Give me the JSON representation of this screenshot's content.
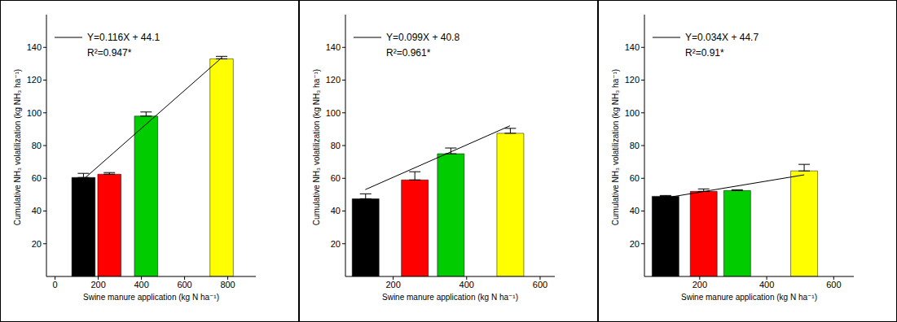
{
  "chart_data": [
    {
      "type": "bar",
      "x_label": "Swine manure application (kg N ha⁻¹)",
      "y_label": "Cumulative NH₃ volatilization (kg NH₃ ha⁻¹)",
      "x": [
        130,
        250,
        420,
        770
      ],
      "values": [
        60.5,
        62.5,
        98,
        133
      ],
      "errors": [
        2.5,
        1,
        2.5,
        1.5
      ],
      "colors": [
        "#000000",
        "#ff0000",
        "#00cc00",
        "#ffff00"
      ],
      "xlim": [
        -40,
        930
      ],
      "xticks": [
        0,
        200,
        400,
        600,
        800
      ],
      "ylim": [
        0,
        160
      ],
      "yticks": [
        20,
        40,
        60,
        80,
        100,
        120,
        140
      ],
      "regression": {
        "equation": "Y=0.116X + 44.1",
        "r_squared_label": "R²=0.947*",
        "slope": 0.116,
        "intercept": 44.1,
        "r_squared": 0.947
      }
    },
    {
      "type": "bar",
      "x_label": "Swine manure application (kg N ha⁻¹)",
      "y_label": "Cumulative NH₃ volatilization (kg NH₃ ha⁻¹)",
      "x": [
        124,
        258,
        356,
        518
      ],
      "values": [
        47.5,
        59,
        75,
        87.5
      ],
      "errors": [
        3,
        5,
        3.5,
        3
      ],
      "colors": [
        "#000000",
        "#ff0000",
        "#00cc00",
        "#ffff00"
      ],
      "xlim": [
        70,
        640
      ],
      "xticks": [
        200,
        400,
        600
      ],
      "ylim": [
        0,
        160
      ],
      "yticks": [
        20,
        40,
        60,
        80,
        100,
        120,
        140
      ],
      "regression": {
        "equation": "Y=0.099X + 40.8",
        "r_squared_label": "R²=0.961*",
        "slope": 0.099,
        "intercept": 40.8,
        "r_squared": 0.961
      }
    },
    {
      "type": "bar",
      "x_label": "Swine manure application (kg N ha⁻¹)",
      "y_label": "Cumulative NH₃ volatilization (kg NH₃ ha⁻¹)",
      "x": [
        98,
        212,
        312,
        512
      ],
      "values": [
        49,
        52,
        52.5,
        64.5
      ],
      "errors": [
        0.5,
        1.5,
        0.5,
        4
      ],
      "colors": [
        "#000000",
        "#ff0000",
        "#00cc00",
        "#ffff00"
      ],
      "xlim": [
        35,
        660
      ],
      "xticks": [
        200,
        400,
        600
      ],
      "ylim": [
        0,
        160
      ],
      "yticks": [
        20,
        40,
        60,
        80,
        100,
        120,
        140
      ],
      "regression": {
        "equation": "Y=0.034X + 44.7",
        "r_squared_label": "R²=0.91*",
        "slope": 0.034,
        "intercept": 44.7,
        "r_squared": 0.91
      }
    }
  ]
}
